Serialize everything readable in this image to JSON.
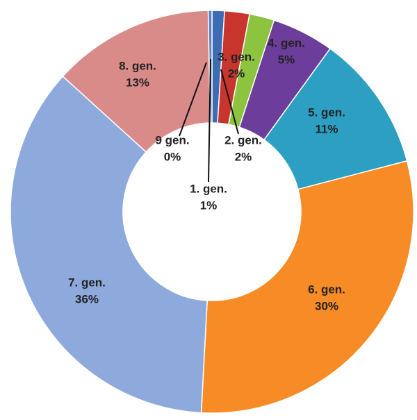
{
  "chart_data": {
    "type": "donut",
    "categories": [
      "1. gen.",
      "2. gen.",
      "3. gen.",
      "4. gen.",
      "5. gen.",
      "6. gen.",
      "7. gen.",
      "8. gen.",
      "9 gen."
    ],
    "values": [
      1,
      2,
      2,
      5,
      11,
      30,
      36,
      13,
      0.3
    ],
    "value_labels": [
      "1%",
      "2%",
      "2%",
      "5%",
      "11%",
      "30%",
      "36%",
      "13%",
      "0%"
    ],
    "colors": [
      "#3d6cb5",
      "#c8352c",
      "#8dc43f",
      "#6c3d9a",
      "#2c9fc2",
      "#f78b26",
      "#8eaadc",
      "#d98b8a",
      "#5b7fc0"
    ]
  }
}
